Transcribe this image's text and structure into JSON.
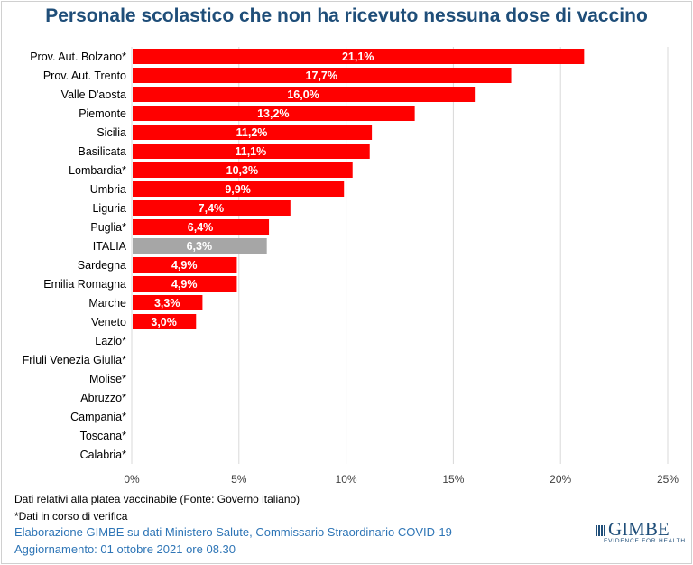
{
  "chart_data": {
    "type": "bar",
    "orientation": "horizontal",
    "title": "Personale scolastico che non ha ricevuto nessuna dose di vaccino",
    "categories": [
      "Prov. Aut. Bolzano*",
      "Prov. Aut. Trento",
      "Valle D'aosta",
      "Piemonte",
      "Sicilia",
      "Basilicata",
      "Lombardia*",
      "Umbria",
      "Liguria",
      "Puglia*",
      "ITALIA",
      "Sardegna",
      "Emilia Romagna",
      "Marche",
      "Veneto",
      "Lazio*",
      "Friuli Venezia Giulia*",
      "Molise*",
      "Abruzzo*",
      "Campania*",
      "Toscana*",
      "Calabria*"
    ],
    "values": [
      21.1,
      17.7,
      16.0,
      13.2,
      11.2,
      11.1,
      10.3,
      9.9,
      7.4,
      6.4,
      6.3,
      4.9,
      4.9,
      3.3,
      3.0,
      null,
      null,
      null,
      null,
      null,
      null,
      null
    ],
    "data_labels": [
      "21,1%",
      "17,7%",
      "16,0%",
      "13,2%",
      "11,2%",
      "11,1%",
      "10,3%",
      "9,9%",
      "7,4%",
      "6,4%",
      "6,3%",
      "4,9%",
      "4,9%",
      "3,3%",
      "3,0%",
      "",
      "",
      "",
      "",
      "",
      "",
      ""
    ],
    "xlim": [
      0,
      25
    ],
    "x_ticks": [
      "0%",
      "5%",
      "10%",
      "15%",
      "20%",
      "25%"
    ],
    "grid": true,
    "colors": {
      "bar": "#ff0000",
      "highlight": "#a6a6a6",
      "highlight_category": "ITALIA"
    }
  },
  "notes": {
    "line1": "Dati relativi alla platea vaccinabile (Fonte: Governo italiano)",
    "line2": "*Dati in corso di verifica"
  },
  "credits": {
    "line1": "Elaborazione GIMBE su dati Ministero Salute, Commissario Straordinario COVID-19",
    "line2": "Aggiornamento: 01 ottobre 2021 ore 08.30"
  },
  "logo": {
    "name": "GIMBE",
    "tagline": "EVIDENCE FOR HEALTH"
  }
}
